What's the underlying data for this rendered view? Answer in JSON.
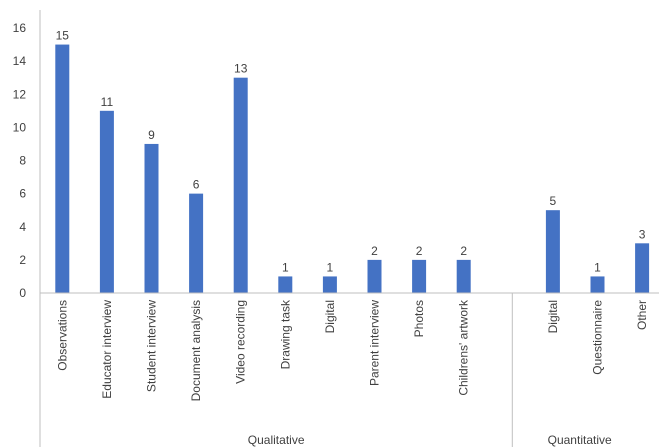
{
  "chart_data": {
    "type": "bar",
    "title": "",
    "xlabel": "",
    "ylabel": "",
    "ylim": [
      0,
      16
    ],
    "yticks": [
      0,
      2,
      4,
      6,
      8,
      10,
      12,
      14,
      16
    ],
    "bar_color": "#4472C4",
    "grid": false,
    "data_labels": true,
    "groups": [
      {
        "name": "Qualitative",
        "categories": [
          "Observations",
          "Educator interview",
          "Student interview",
          "Document analysis",
          "Video recording",
          "Drawing task",
          "Digital",
          "Parent interview",
          "Photos",
          "Childrens' artwork"
        ],
        "values": [
          15,
          11,
          9,
          6,
          13,
          1,
          1,
          2,
          2,
          2
        ]
      },
      {
        "name": "Quantitative",
        "categories": [
          "Digital",
          "Questionnaire",
          "Other"
        ],
        "values": [
          5,
          1,
          3
        ]
      }
    ]
  }
}
